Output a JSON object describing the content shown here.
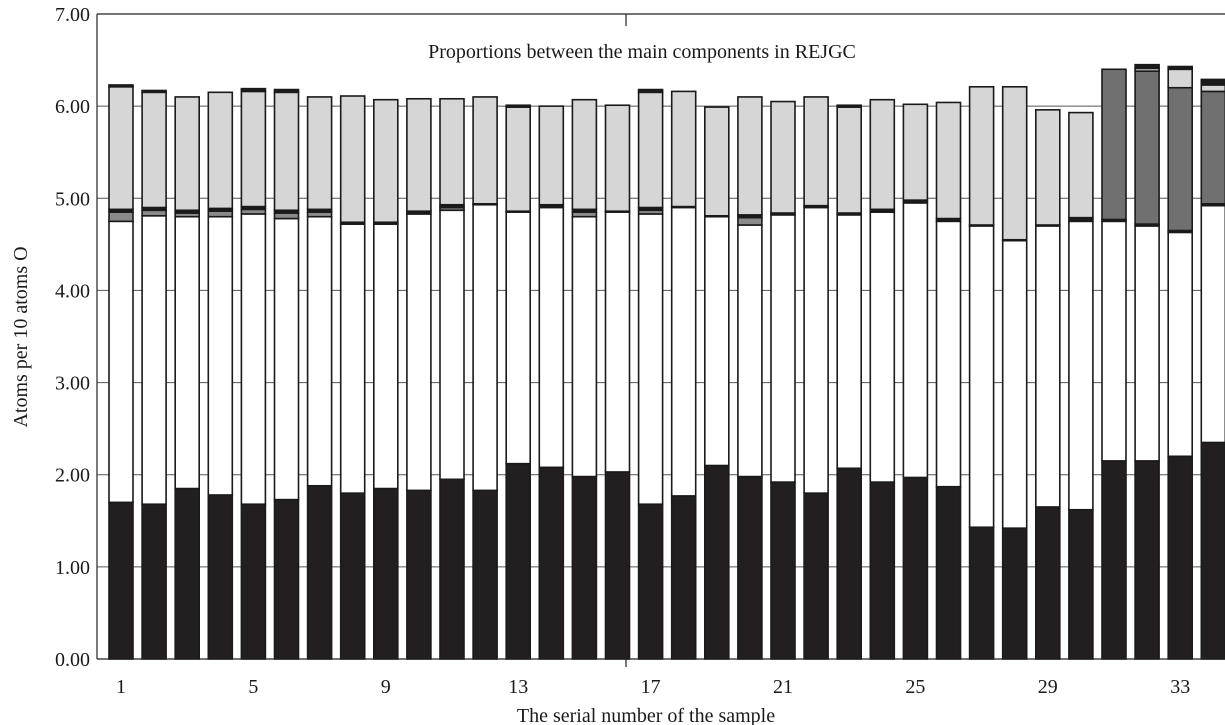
{
  "chart_data": {
    "type": "bar",
    "stacked": true,
    "title": "Proportions between the main components in REJGC",
    "xlabel": "The serial number of the sample",
    "ylabel": "Atoms per 10 atoms O",
    "ylim": [
      0,
      7
    ],
    "yticks": [
      "0.00",
      "1.00",
      "2.00",
      "3.00",
      "4.00",
      "5.00",
      "6.00",
      "7.00"
    ],
    "xticks": [
      1,
      5,
      9,
      13,
      17,
      21,
      25,
      29,
      33
    ],
    "grid": true,
    "legend": "none",
    "categories": [
      1,
      2,
      3,
      4,
      5,
      6,
      7,
      8,
      9,
      10,
      11,
      12,
      13,
      14,
      15,
      16,
      17,
      18,
      19,
      20,
      21,
      22,
      23,
      24,
      25,
      26,
      27,
      28,
      29,
      30,
      31,
      32,
      33,
      34
    ],
    "colors": [
      "#231f20",
      "#ffffff",
      "#8a8a8a",
      "#1a1a1a",
      "#707070",
      "#d6d6d6",
      "#1a1a1a"
    ],
    "series": [
      {
        "values": [
          1.7,
          1.68,
          1.85,
          1.78,
          1.68,
          1.73,
          1.88,
          1.8,
          1.85,
          1.83,
          1.95,
          1.83,
          2.12,
          2.08,
          1.98,
          2.03,
          1.68,
          1.77,
          2.1,
          1.98,
          1.92,
          1.8,
          2.07,
          1.92,
          1.97,
          1.87,
          1.43,
          1.42,
          1.65,
          1.62,
          2.15,
          2.15,
          2.2,
          2.35
        ]
      },
      {
        "values": [
          3.05,
          3.13,
          2.95,
          3.02,
          3.15,
          3.05,
          2.92,
          2.92,
          2.87,
          3.0,
          2.92,
          3.1,
          2.73,
          2.82,
          2.82,
          2.82,
          3.15,
          3.13,
          2.7,
          2.73,
          2.9,
          3.1,
          2.75,
          2.93,
          2.98,
          2.88,
          3.27,
          3.12,
          3.05,
          3.13,
          2.6,
          2.55,
          2.43,
          2.57
        ]
      },
      {
        "values": [
          0.1,
          0.06,
          0.04,
          0.06,
          0.05,
          0.06,
          0.05,
          0.0,
          0.0,
          0.0,
          0.03,
          0.0,
          0.0,
          0.0,
          0.05,
          0.0,
          0.04,
          0.0,
          0.0,
          0.08,
          0.0,
          0.0,
          0.0,
          0.0,
          0.0,
          0.0,
          0.0,
          0.0,
          0.0,
          0.0,
          0.0,
          0.0,
          0.0,
          0.0
        ]
      },
      {
        "values": [
          0.03,
          0.03,
          0.03,
          0.03,
          0.03,
          0.03,
          0.03,
          0.02,
          0.02,
          0.03,
          0.03,
          0.01,
          0.01,
          0.03,
          0.03,
          0.01,
          0.03,
          0.01,
          0.01,
          0.03,
          0.02,
          0.02,
          0.02,
          0.03,
          0.03,
          0.03,
          0.01,
          0.01,
          0.01,
          0.04,
          0.02,
          0.02,
          0.02,
          0.02
        ]
      },
      {
        "values": [
          0,
          0,
          0,
          0,
          0,
          0,
          0,
          0,
          0,
          0,
          0,
          0,
          0,
          0,
          0,
          0,
          0,
          0,
          0,
          0,
          0,
          0,
          0,
          0,
          0,
          0,
          0,
          0,
          0,
          0,
          1.63,
          1.66,
          1.55,
          1.22
        ]
      },
      {
        "values": [
          1.33,
          1.25,
          1.23,
          1.26,
          1.25,
          1.28,
          1.22,
          1.37,
          1.33,
          1.22,
          1.15,
          1.16,
          1.13,
          1.07,
          1.19,
          1.15,
          1.25,
          1.25,
          1.18,
          1.28,
          1.21,
          1.18,
          1.15,
          1.19,
          1.04,
          1.26,
          1.5,
          1.66,
          1.25,
          1.14,
          0.0,
          0.03,
          0.2,
          0.07
        ]
      },
      {
        "values": [
          0.02,
          0.02,
          0.0,
          0.0,
          0.03,
          0.03,
          0.0,
          0.0,
          0.0,
          0.0,
          0.0,
          0.0,
          0.02,
          0.0,
          0.0,
          0.0,
          0.03,
          0.0,
          0.0,
          0.0,
          0.0,
          0.0,
          0.02,
          0.0,
          0.0,
          0.0,
          0.0,
          0.0,
          0.0,
          0.0,
          0.0,
          0.04,
          0.03,
          0.06
        ]
      }
    ]
  }
}
